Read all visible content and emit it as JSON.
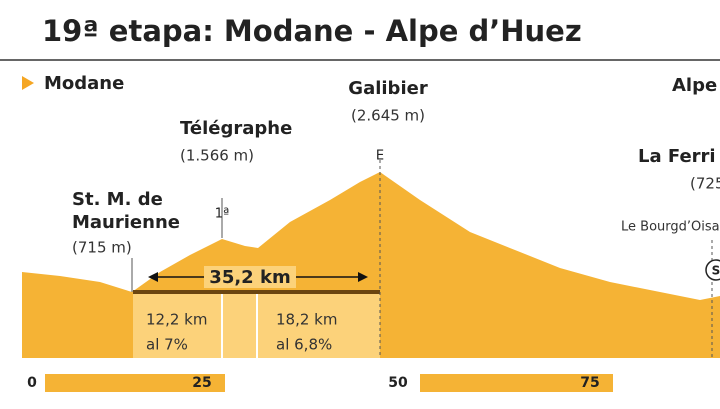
{
  "header": {
    "title": "19ª etapa: Modane - Alpe d’Huez"
  },
  "places": {
    "start": "Modane",
    "finish": "Alpe",
    "st_michel": {
      "line1": "St. M. de",
      "line2": "Maurienne",
      "altitude": "(715 m)"
    },
    "telegraphe": {
      "name": "Télégraphe",
      "altitude": "(1.566 m)",
      "category": "1ª"
    },
    "galibier": {
      "name": "Galibier",
      "altitude": "(2.645 m)",
      "category": "E"
    },
    "la_ferriere": {
      "name": "La Ferri",
      "altitude": "(725"
    },
    "bourg": {
      "name": "Le Bourgd’Oisans",
      "marker": "S"
    }
  },
  "climb": {
    "total": "35,2 km",
    "sections": [
      {
        "distance": "12,2 km",
        "gradient": "al 7%"
      },
      {
        "distance": "18,2 km",
        "gradient": "al 6,8%"
      }
    ]
  },
  "km_axis": [
    "0",
    "25",
    "50",
    "75"
  ]
}
